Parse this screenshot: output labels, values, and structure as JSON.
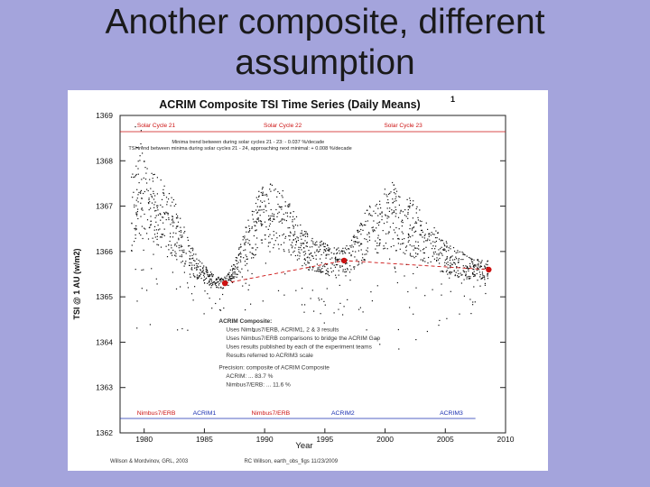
{
  "slide": {
    "title_line1": "Another composite, different",
    "title_line2": "assumption"
  },
  "chart_data": {
    "type": "scatter",
    "title": "ACRIM Composite TSI Time Series (Daily Means)",
    "title_superscript": "1",
    "xlabel": "Year",
    "ylabel": "TSI @ 1 AU (w/m2)",
    "xlim": [
      1978,
      2010
    ],
    "ylim": [
      1362,
      1369
    ],
    "x_ticks": [
      1980,
      1985,
      1990,
      1995,
      2000,
      2005,
      2010
    ],
    "y_ticks": [
      1362,
      1363,
      1364,
      1365,
      1366,
      1367,
      1368,
      1369
    ],
    "grid": false,
    "cycle_labels": [
      {
        "text": "Solar Cycle 21",
        "x": 1981.0
      },
      {
        "text": "Solar Cycle 22",
        "x": 1991.5
      },
      {
        "text": "Solar Cycle 23",
        "x": 2001.5
      }
    ],
    "trend_notes": [
      "Minima trend between  during solar cycles 21 - 23: - 0.037 %/decade",
      "TSI trend between minima during solar cycles 21 - 24, approaching next minimal: + 0.008 %/decade"
    ],
    "minima_points": [
      {
        "x": 1986.7,
        "y": 1365.3
      },
      {
        "x": 1996.6,
        "y": 1365.8
      },
      {
        "x": 2008.6,
        "y": 1365.6
      }
    ],
    "daily_means_envelope": [
      {
        "x": 1978.9,
        "y": 1366.6
      },
      {
        "x": 1979.5,
        "y": 1367.3
      },
      {
        "x": 1980.5,
        "y": 1367.0
      },
      {
        "x": 1981.5,
        "y": 1366.8
      },
      {
        "x": 1982.5,
        "y": 1366.5
      },
      {
        "x": 1983.5,
        "y": 1366.0
      },
      {
        "x": 1984.5,
        "y": 1365.6
      },
      {
        "x": 1985.5,
        "y": 1365.4
      },
      {
        "x": 1986.5,
        "y": 1365.3
      },
      {
        "x": 1987.5,
        "y": 1365.6
      },
      {
        "x": 1988.5,
        "y": 1366.2
      },
      {
        "x": 1989.5,
        "y": 1366.7
      },
      {
        "x": 1990.5,
        "y": 1366.8
      },
      {
        "x": 1991.5,
        "y": 1366.7
      },
      {
        "x": 1992.5,
        "y": 1366.3
      },
      {
        "x": 1993.5,
        "y": 1366.0
      },
      {
        "x": 1994.5,
        "y": 1365.9
      },
      {
        "x": 1995.5,
        "y": 1365.8
      },
      {
        "x": 1996.5,
        "y": 1365.8
      },
      {
        "x": 1997.5,
        "y": 1366.0
      },
      {
        "x": 1998.5,
        "y": 1366.4
      },
      {
        "x": 1999.5,
        "y": 1366.6
      },
      {
        "x": 2000.5,
        "y": 1366.8
      },
      {
        "x": 2001.5,
        "y": 1366.6
      },
      {
        "x": 2002.5,
        "y": 1366.5
      },
      {
        "x": 2003.5,
        "y": 1366.2
      },
      {
        "x": 2004.5,
        "y": 1366.0
      },
      {
        "x": 2005.5,
        "y": 1365.8
      },
      {
        "x": 2006.5,
        "y": 1365.7
      },
      {
        "x": 2007.5,
        "y": 1365.6
      },
      {
        "x": 2008.5,
        "y": 1365.6
      }
    ],
    "composite_notes": [
      "ACRIM Composite:",
      "Uses Nimbus7/ERB, ACRIM1, 2 & 3 results",
      "Uses Nimbus7/ERB comparisons to bridge the ACRIM Gap",
      "Uses results published by each of the experiment teams",
      "Results referred to ACRIM3 scale"
    ],
    "precision_notes": [
      "Precision: composite of ACRIM Composite",
      "ACRIM: ... 83.7 %",
      "Nimbus7/ERB: ... 11.6 %"
    ],
    "instruments": [
      {
        "text": "Nimbus7/ERB",
        "x": 1981.0,
        "color": "#cc1111"
      },
      {
        "text": "ACRIM1",
        "x": 1985.0,
        "color": "#1a2fb0"
      },
      {
        "text": "Nimbus7/ERB",
        "x": 1990.5,
        "color": "#cc1111"
      },
      {
        "text": "ACRIM2",
        "x": 1996.5,
        "color": "#1a2fb0"
      },
      {
        "text": "ACRIM3",
        "x": 2005.5,
        "color": "#1a2fb0"
      }
    ],
    "footnote_left": "Willson & Mordvinov, GRL, 2003",
    "footnote_right": "RC Willson, earth_obs_figs 11/23/2009",
    "colors": {
      "points": "#111111",
      "minima": "#cc1111",
      "cycle_label": "#cc1111",
      "cycle_line": "#cc1111",
      "instrument_line": "#1a2fb0"
    }
  }
}
